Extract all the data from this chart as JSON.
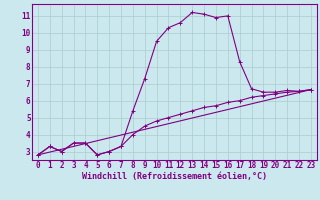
{
  "xlabel": "Windchill (Refroidissement éolien,°C)",
  "bg_color": "#cce8ef",
  "line_color": "#800080",
  "spine_color": "#800080",
  "xlim": [
    -0.5,
    23.5
  ],
  "ylim": [
    2.5,
    11.7
  ],
  "xticks": [
    0,
    1,
    2,
    3,
    4,
    5,
    6,
    7,
    8,
    9,
    10,
    11,
    12,
    13,
    14,
    15,
    16,
    17,
    18,
    19,
    20,
    21,
    22,
    23
  ],
  "yticks": [
    3,
    4,
    5,
    6,
    7,
    8,
    9,
    10,
    11
  ],
  "grid_color": "#aacccc",
  "curve1_x": [
    0,
    1,
    2,
    3,
    4,
    5,
    6,
    7,
    8,
    9,
    10,
    11,
    12,
    13,
    14,
    15,
    16,
    17,
    18,
    19,
    20,
    21,
    22,
    23
  ],
  "curve1_y": [
    2.8,
    3.3,
    3.0,
    3.5,
    3.5,
    2.8,
    3.0,
    3.3,
    5.4,
    7.3,
    9.5,
    10.3,
    10.6,
    11.2,
    11.1,
    10.9,
    11.0,
    8.3,
    6.7,
    6.5,
    6.5,
    6.6,
    6.55,
    6.65
  ],
  "curve2_x": [
    0,
    1,
    2,
    3,
    4,
    5,
    6,
    7,
    8,
    9,
    10,
    11,
    12,
    13,
    14,
    15,
    16,
    17,
    18,
    19,
    20,
    21,
    22,
    23
  ],
  "curve2_y": [
    2.8,
    3.3,
    3.0,
    3.5,
    3.5,
    2.8,
    3.0,
    3.3,
    4.0,
    4.5,
    4.8,
    5.0,
    5.2,
    5.4,
    5.6,
    5.7,
    5.9,
    6.0,
    6.2,
    6.3,
    6.4,
    6.5,
    6.55,
    6.65
  ],
  "curve3_x": [
    0,
    23
  ],
  "curve3_y": [
    2.8,
    6.65
  ],
  "tick_fontsize": 5.5,
  "xlabel_fontsize": 6.0
}
